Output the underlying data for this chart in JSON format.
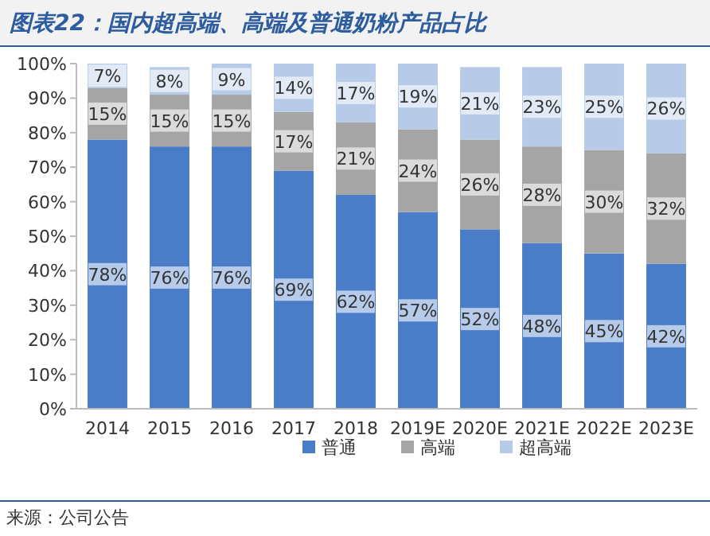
{
  "chart_data": {
    "type": "bar",
    "title": "图表22：国内超高端、高端及普通奶粉产品占比",
    "stacked": true,
    "categories": [
      "2014",
      "2015",
      "2016",
      "2017",
      "2018",
      "2019E",
      "2020E",
      "2021E",
      "2022E",
      "2023E"
    ],
    "series": [
      {
        "name": "普通",
        "color": "#4a7cc7",
        "values": [
          78,
          76,
          76,
          69,
          62,
          57,
          52,
          48,
          45,
          42
        ]
      },
      {
        "name": "高端",
        "color": "#a5a5a5",
        "values": [
          15,
          15,
          15,
          17,
          21,
          24,
          26,
          28,
          30,
          32
        ]
      },
      {
        "name": "超高端",
        "color": "#b7cbe8",
        "values": [
          7,
          8,
          9,
          14,
          17,
          19,
          21,
          23,
          25,
          26
        ]
      }
    ],
    "ylim": [
      0,
      100
    ],
    "yticks": [
      {
        "value": 0,
        "label": "0%"
      },
      {
        "value": 10,
        "label": "10%"
      },
      {
        "value": 20,
        "label": "20%"
      },
      {
        "value": 30,
        "label": "30%"
      },
      {
        "value": 40,
        "label": "40%"
      },
      {
        "value": 50,
        "label": "50%"
      },
      {
        "value": 60,
        "label": "60%"
      },
      {
        "value": 70,
        "label": "70%"
      },
      {
        "value": 80,
        "label": "80%"
      },
      {
        "value": 90,
        "label": "90%"
      },
      {
        "value": 100,
        "label": "100%"
      }
    ],
    "value_labels": [
      [
        "78%",
        "76%",
        "76%",
        "69%",
        "62%",
        "57%",
        "52%",
        "48%",
        "45%",
        "42%"
      ],
      [
        "15%",
        "15%",
        "15%",
        "17%",
        "21%",
        "24%",
        "26%",
        "28%",
        "30%",
        "32%"
      ],
      [
        "7%",
        "8%",
        "9%",
        "14%",
        "17%",
        "19%",
        "21%",
        "23%",
        "25%",
        "26%"
      ]
    ],
    "legend": "bottom",
    "annotations": [
      "来源：公司公告"
    ]
  }
}
